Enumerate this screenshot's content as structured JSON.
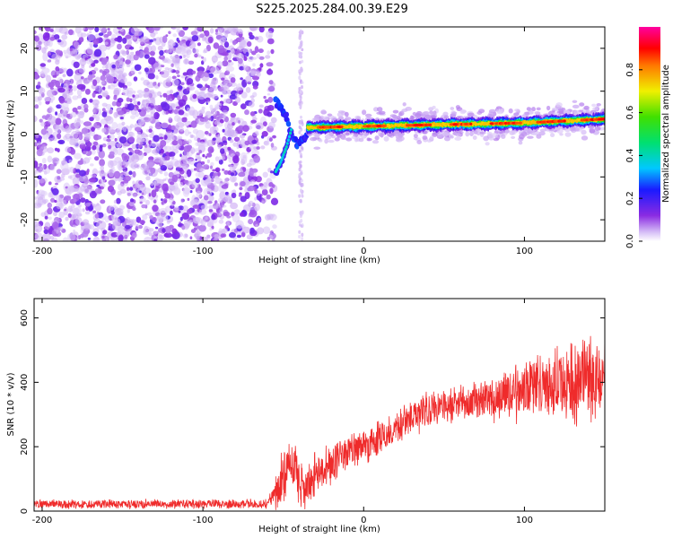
{
  "figure_title": "S225.2025.284.00.39.E29",
  "colors": {
    "snr_line": "#ef2b2b",
    "frame": "#000000",
    "purple_dark": "#7b1fe8",
    "purple_light": "#d9c4f7"
  },
  "chart_data": [
    {
      "type": "heatmap",
      "title": "S225.2025.284.00.39.E29",
      "xlabel": "Height of straight line (km)",
      "ylabel": "Frequency (Hz)",
      "xlim": [
        -205,
        150
      ],
      "ylim": [
        -25,
        25
      ],
      "xticks": [
        -200,
        -100,
        0,
        100
      ],
      "yticks": [
        -20,
        -10,
        0,
        10,
        20
      ],
      "colorbar": {
        "label": "Normalized spectral amplitude",
        "range": [
          0,
          1
        ],
        "ticks": [
          "0.0",
          "0.2",
          "0.4",
          "0.6",
          "0.8"
        ],
        "tick_values": [
          0,
          0.2,
          0.4,
          0.6,
          0.8
        ],
        "colormap": "white-purple-blue-cyan-green-yellow-red-magenta"
      },
      "features": [
        {
          "name": "noise-region",
          "x_range": [
            -205,
            -55
          ],
          "y_range": [
            -25,
            25
          ],
          "amplitude": 0.1
        },
        {
          "name": "sparse-column",
          "x_range": [
            -40,
            -38
          ],
          "y_range": [
            -25,
            25
          ],
          "amplitude": 0.05
        },
        {
          "name": "transition-track",
          "points": [
            [
              -55,
              8
            ],
            [
              -48,
              4
            ],
            [
              -45,
              0
            ],
            [
              -42,
              -2
            ],
            [
              -40,
              -2
            ],
            [
              -35,
              0
            ]
          ],
          "amplitude": 0.2
        },
        {
          "name": "descending-arm",
          "points": [
            [
              -45,
              1
            ],
            [
              -48,
              -3
            ],
            [
              -52,
              -7
            ],
            [
              -55,
              -9
            ]
          ],
          "amplitude": 0.35
        },
        {
          "name": "frequency-track",
          "points": [
            [
              -35,
              1.5
            ],
            [
              0,
              1.8
            ],
            [
              50,
              2.2
            ],
            [
              100,
              2.6
            ],
            [
              150,
              3.5
            ]
          ],
          "amplitude": 0.9
        }
      ]
    },
    {
      "type": "line",
      "xlabel": "Height of straight line (km)",
      "ylabel": "SNR (10 * v/v)",
      "xlim": [
        -205,
        150
      ],
      "ylim": [
        0,
        660
      ],
      "xticks": [
        -200,
        -100,
        0,
        100
      ],
      "yticks": [
        0,
        200,
        400,
        600
      ],
      "series": [
        {
          "name": "SNR",
          "mean": {
            "x": [
              -205,
              -70,
              -60,
              -55,
              -45,
              -40,
              -35,
              -30,
              -20,
              -10,
              0,
              10,
              20,
              30,
              50,
              75,
              100,
              125,
              150
            ],
            "y": [
              22,
              22,
              24,
              55,
              160,
              80,
              70,
              110,
              150,
              185,
              205,
              230,
              255,
              300,
              320,
              345,
              380,
              395,
              420
            ]
          },
          "noise_amplitude": {
            "x": [
              -205,
              -60,
              -50,
              -40,
              -20,
              0,
              20,
              60,
              100,
              125,
              150
            ],
            "y": [
              12,
              12,
              70,
              60,
              50,
              50,
              45,
              45,
              70,
              110,
              110
            ]
          }
        }
      ]
    }
  ]
}
